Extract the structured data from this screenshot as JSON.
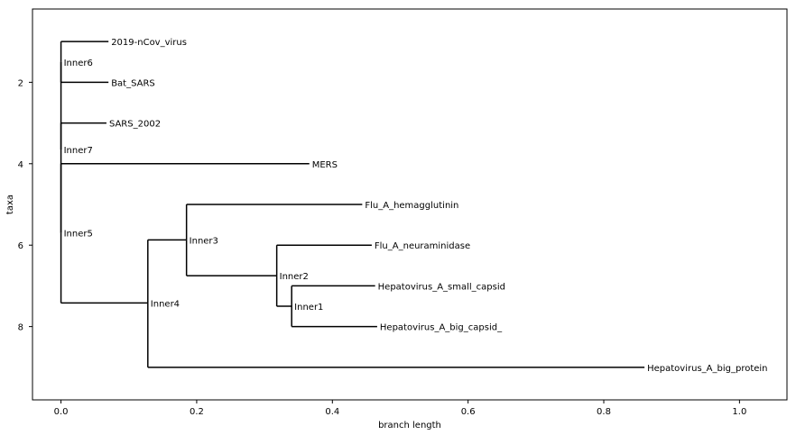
{
  "chart_data": {
    "type": "tree",
    "xlabel": "branch length",
    "ylabel": "taxa",
    "xlim": [
      -0.042,
      1.07
    ],
    "ylim": [
      9.8,
      0.2
    ],
    "xticks": [
      "0.0",
      "0.2",
      "0.4",
      "0.6",
      "0.8",
      "1.0"
    ],
    "xtick_values": [
      0.0,
      0.2,
      0.4,
      0.6,
      0.8,
      1.0
    ],
    "yticks": [
      "2",
      "4",
      "6",
      "8"
    ],
    "ytick_values": [
      2,
      4,
      6,
      8
    ],
    "grid": false,
    "line_color": "#000000",
    "nodes": [
      {
        "id": "Inner7",
        "label": "Inner7",
        "x": 0.0,
        "y": 3.65,
        "parent": null,
        "label_y": 3.65
      },
      {
        "id": "Inner6",
        "label": "Inner6",
        "x": 0.0,
        "y": 1.5,
        "parent": "Inner7"
      },
      {
        "id": "2019-nCov_virus",
        "label": "2019-nCov_virus",
        "x": 0.07,
        "y": 1.0,
        "parent": "Inner6"
      },
      {
        "id": "Bat_SARS",
        "label": "Bat_SARS",
        "x": 0.07,
        "y": 2.0,
        "parent": "Inner6"
      },
      {
        "id": "SARS_2002",
        "label": "SARS_2002",
        "x": 0.067,
        "y": 3.0,
        "parent": "Inner7"
      },
      {
        "id": "Inner5",
        "label": "Inner5",
        "x": 0.0,
        "y": 5.7,
        "parent": "Inner7"
      },
      {
        "id": "MERS",
        "label": "MERS",
        "x": 0.366,
        "y": 4.0,
        "parent": "Inner5"
      },
      {
        "id": "Inner4",
        "label": "Inner4",
        "x": 0.128,
        "y": 7.42,
        "parent": "Inner5"
      },
      {
        "id": "Inner3",
        "label": "Inner3",
        "x": 0.185,
        "y": 5.87,
        "parent": "Inner4"
      },
      {
        "id": "Flu_A_hemagglutinin",
        "label": "Flu_A_hemagglutinin",
        "x": 0.444,
        "y": 5.0,
        "parent": "Inner3"
      },
      {
        "id": "Inner2",
        "label": "Inner2",
        "x": 0.318,
        "y": 6.75,
        "parent": "Inner3"
      },
      {
        "id": "Flu_A_neuraminidase",
        "label": "Flu_A_neuraminidase",
        "x": 0.458,
        "y": 6.0,
        "parent": "Inner2"
      },
      {
        "id": "Inner1",
        "label": "Inner1",
        "x": 0.34,
        "y": 7.5,
        "parent": "Inner2"
      },
      {
        "id": "Hepatovirus_A_small_capsid",
        "label": "Hepatovirus_A_small_capsid",
        "x": 0.463,
        "y": 7.0,
        "parent": "Inner1"
      },
      {
        "id": "Hepatovirus_A_big_capsid_",
        "label": "Hepatovirus_A_big_capsid_",
        "x": 0.466,
        "y": 8.0,
        "parent": "Inner1"
      },
      {
        "id": "Hepatovirus_A_big_protein",
        "label": "Hepatovirus_A_big_protein",
        "x": 0.86,
        "y": 9.0,
        "parent": "Inner4"
      }
    ]
  }
}
